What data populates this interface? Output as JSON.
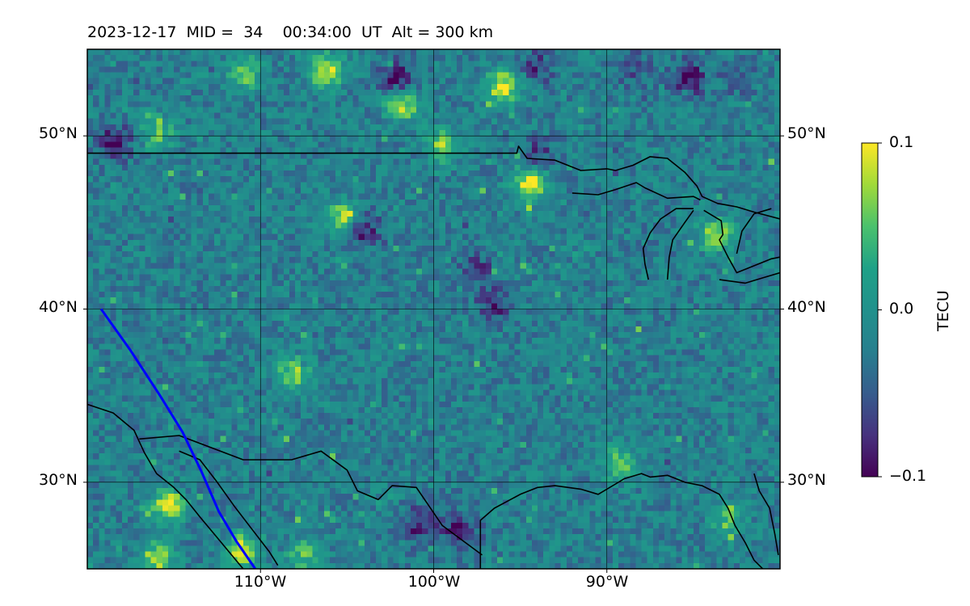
{
  "title": {
    "date": "2023-12-17",
    "mid_label": "MID =",
    "mid": "34",
    "time": "00:34:00",
    "time_unit": "UT",
    "alt_label": "Alt =",
    "alt": "300",
    "alt_unit": "km"
  },
  "map": {
    "projection": "PlateCarree",
    "lon_range": [
      -120,
      -80
    ],
    "lat_range": [
      25,
      55
    ],
    "lat_gridlines": [
      30,
      40,
      50
    ],
    "lon_gridlines": [
      -110,
      -100,
      -90
    ],
    "lat_tick_labels": [
      "30°N",
      "40°N",
      "50°N"
    ],
    "lon_tick_labels": [
      "110°W",
      "100°W",
      "90°W"
    ],
    "gridlines": true,
    "gridline_color": "#000000",
    "coastline_color": "#000000",
    "track_color": "#0000ff",
    "track": {
      "lon": [
        -119.2,
        -117.5,
        -115.8,
        -114.5,
        -113.4,
        -112.4,
        -111.4,
        -110.3
      ],
      "lat": [
        40.0,
        37.6,
        35.0,
        32.9,
        30.6,
        28.3,
        26.6,
        25.0
      ]
    },
    "field": {
      "name": "dTEC",
      "unit": "TECU",
      "range": [
        -0.1,
        0.1
      ],
      "colormap": "viridis",
      "typical_value": -0.02,
      "hotspots": [
        {
          "lon": -96.0,
          "lat": 52.8,
          "value": 0.1
        },
        {
          "lon": -106.2,
          "lat": 53.8,
          "value": 0.09
        },
        {
          "lon": -101.8,
          "lat": 51.8,
          "value": 0.08
        },
        {
          "lon": -94.5,
          "lat": 47.2,
          "value": 0.1
        },
        {
          "lon": -105.3,
          "lat": 45.2,
          "value": 0.08
        },
        {
          "lon": -115.3,
          "lat": 28.6,
          "value": 0.1
        },
        {
          "lon": -111.1,
          "lat": 26.0,
          "value": 0.1
        },
        {
          "lon": -116.0,
          "lat": 25.6,
          "value": 0.08
        },
        {
          "lon": -110.9,
          "lat": 53.6,
          "value": 0.06
        },
        {
          "lon": -108.1,
          "lat": 36.2,
          "value": 0.07
        },
        {
          "lon": -99.5,
          "lat": 49.5,
          "value": 0.07
        },
        {
          "lon": -83.7,
          "lat": 44.3,
          "value": 0.07
        },
        {
          "lon": -89.3,
          "lat": 31.1,
          "value": 0.06
        },
        {
          "lon": -116.0,
          "lat": 50.2,
          "value": 0.05
        },
        {
          "lon": -83.0,
          "lat": 27.8,
          "value": 0.05
        },
        {
          "lon": -107.5,
          "lat": 25.8,
          "value": 0.05
        },
        {
          "lon": -118.4,
          "lat": 49.6,
          "value": -0.1
        },
        {
          "lon": -85.3,
          "lat": 53.3,
          "value": -0.1
        },
        {
          "lon": -98.5,
          "lat": 27.2,
          "value": -0.1
        },
        {
          "lon": -100.8,
          "lat": 27.6,
          "value": -0.09
        },
        {
          "lon": -102.1,
          "lat": 53.3,
          "value": -0.1
        },
        {
          "lon": -104.1,
          "lat": 44.6,
          "value": -0.09
        },
        {
          "lon": -94.0,
          "lat": 54.0,
          "value": -0.07
        },
        {
          "lon": -88.5,
          "lat": 54.0,
          "value": -0.06
        },
        {
          "lon": -82.5,
          "lat": 53.4,
          "value": -0.06
        },
        {
          "lon": -96.5,
          "lat": 40.2,
          "value": -0.08
        },
        {
          "lon": -94.0,
          "lat": 49.0,
          "value": -0.07
        },
        {
          "lon": -97.5,
          "lat": 42.3,
          "value": -0.07
        }
      ]
    },
    "coastlines": [
      [
        [
          -120,
          49.0
        ],
        [
          -95.2,
          49.0
        ],
        [
          -95.1,
          49.4
        ],
        [
          -94.6,
          48.7
        ],
        [
          -93.0,
          48.6
        ],
        [
          -91.5,
          48.0
        ],
        [
          -90.0,
          48.1
        ],
        [
          -89.5,
          48.0
        ],
        [
          -88.5,
          48.3
        ],
        [
          -87.5,
          48.8
        ],
        [
          -86.5,
          48.7
        ],
        [
          -85.5,
          47.9
        ],
        [
          -84.8,
          47.1
        ],
        [
          -84.5,
          46.5
        ],
        [
          -83.6,
          46.1
        ],
        [
          -82.5,
          45.9
        ],
        [
          -81.5,
          45.6
        ],
        [
          -80.0,
          45.2
        ]
      ],
      [
        [
          -92.0,
          46.7
        ],
        [
          -90.5,
          46.6
        ],
        [
          -89.5,
          46.9
        ],
        [
          -88.3,
          47.3
        ],
        [
          -87.8,
          47.0
        ],
        [
          -86.5,
          46.4
        ],
        [
          -85.0,
          46.5
        ],
        [
          -84.6,
          46.3
        ]
      ],
      [
        [
          -87.6,
          41.7
        ],
        [
          -87.8,
          42.6
        ],
        [
          -87.9,
          43.5
        ],
        [
          -87.5,
          44.4
        ],
        [
          -86.9,
          45.2
        ],
        [
          -86.0,
          45.8
        ],
        [
          -85.0,
          45.8
        ]
      ],
      [
        [
          -86.5,
          41.7
        ],
        [
          -86.4,
          43.0
        ],
        [
          -86.2,
          44.0
        ],
        [
          -85.5,
          45.0
        ],
        [
          -85.0,
          45.7
        ]
      ],
      [
        [
          -84.4,
          45.7
        ],
        [
          -83.4,
          45.1
        ],
        [
          -83.3,
          44.3
        ],
        [
          -83.5,
          44.0
        ],
        [
          -83.0,
          43.0
        ],
        [
          -82.5,
          42.1
        ],
        [
          -81.5,
          42.5
        ],
        [
          -80.5,
          42.9
        ],
        [
          -80.0,
          43.0
        ]
      ],
      [
        [
          -83.5,
          41.7
        ],
        [
          -82.0,
          41.5
        ],
        [
          -81.0,
          41.8
        ],
        [
          -80.0,
          42.1
        ]
      ],
      [
        [
          -82.5,
          43.2
        ],
        [
          -82.2,
          44.5
        ],
        [
          -81.5,
          45.5
        ],
        [
          -80.5,
          45.8
        ]
      ],
      [
        [
          -117.0,
          32.5
        ],
        [
          -114.7,
          32.7
        ],
        [
          -111.0,
          31.3
        ],
        [
          -108.2,
          31.3
        ],
        [
          -106.5,
          31.8
        ],
        [
          -105.0,
          30.7
        ],
        [
          -104.4,
          29.5
        ],
        [
          -103.2,
          29.0
        ],
        [
          -102.4,
          29.8
        ],
        [
          -101.0,
          29.7
        ],
        [
          -99.5,
          27.5
        ],
        [
          -97.2,
          25.8
        ]
      ],
      [
        [
          -120.0,
          34.5
        ],
        [
          -118.5,
          34.0
        ],
        [
          -117.3,
          33.0
        ],
        [
          -116.7,
          31.7
        ],
        [
          -116.0,
          30.5
        ],
        [
          -115.0,
          29.7
        ],
        [
          -114.3,
          29.0
        ],
        [
          -113.5,
          28.0
        ],
        [
          -112.5,
          26.8
        ],
        [
          -111.0,
          25.0
        ]
      ],
      [
        [
          -114.7,
          31.8
        ],
        [
          -113.5,
          31.3
        ],
        [
          -112.5,
          30.0
        ],
        [
          -111.5,
          28.6
        ],
        [
          -110.5,
          27.3
        ],
        [
          -109.5,
          26.0
        ],
        [
          -109.0,
          25.2
        ]
      ],
      [
        [
          -97.3,
          25.0
        ],
        [
          -97.3,
          27.8
        ],
        [
          -96.5,
          28.5
        ],
        [
          -95.0,
          29.3
        ],
        [
          -94.0,
          29.7
        ],
        [
          -93.0,
          29.8
        ],
        [
          -91.5,
          29.6
        ],
        [
          -90.5,
          29.3
        ],
        [
          -89.5,
          29.9
        ],
        [
          -89.0,
          30.2
        ],
        [
          -88.0,
          30.5
        ],
        [
          -87.5,
          30.3
        ],
        [
          -86.5,
          30.4
        ],
        [
          -85.5,
          30.0
        ],
        [
          -84.5,
          29.8
        ],
        [
          -83.5,
          29.3
        ],
        [
          -83.0,
          28.5
        ],
        [
          -82.6,
          27.5
        ],
        [
          -82.0,
          26.5
        ],
        [
          -81.5,
          25.5
        ],
        [
          -81.0,
          25.0
        ]
      ],
      [
        [
          -81.5,
          30.5
        ],
        [
          -81.2,
          29.5
        ],
        [
          -80.6,
          28.5
        ],
        [
          -80.3,
          27.0
        ],
        [
          -80.1,
          25.8
        ]
      ]
    ]
  },
  "colorbar": {
    "label": "TECU",
    "ticks": [
      0.1,
      0.0,
      -0.1
    ],
    "tick_labels": [
      "0.1",
      "0.0",
      "−0.1"
    ]
  }
}
